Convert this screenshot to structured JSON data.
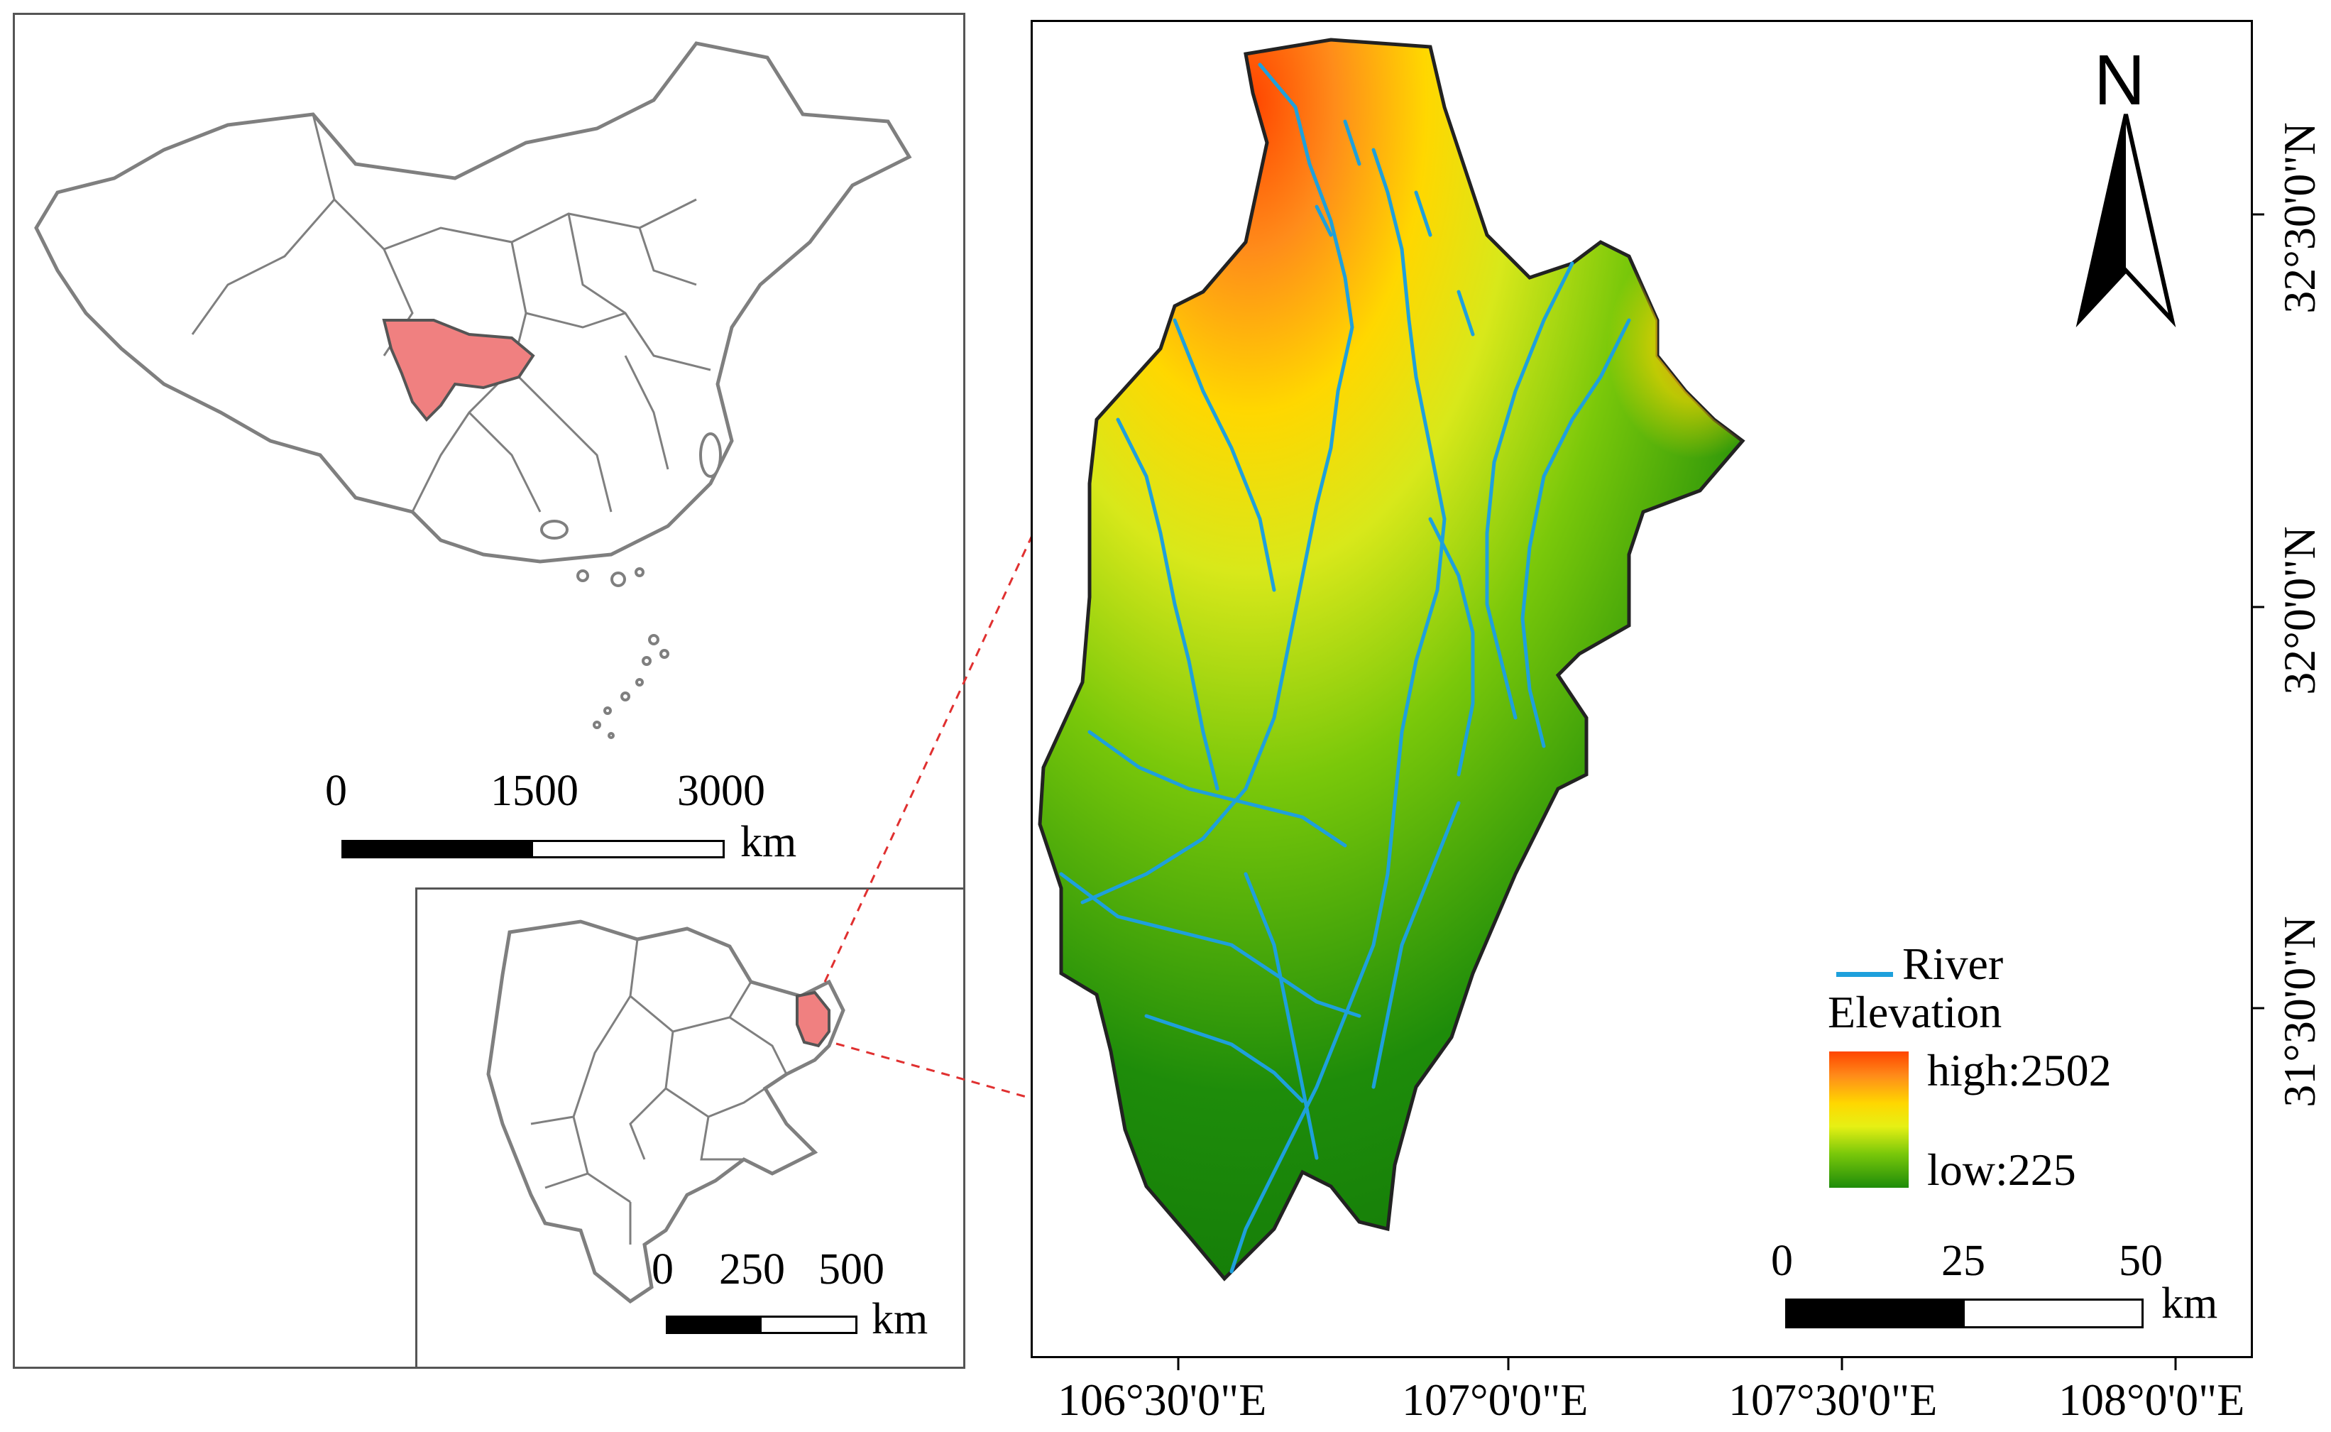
{
  "china_map": {
    "highlight_color": "#f08080",
    "outline_color": "#7f7f7f",
    "scalebar": {
      "ticks": [
        "0",
        "1500",
        "3000"
      ],
      "unit": "km"
    }
  },
  "sichuan_map": {
    "highlight_color": "#f08080",
    "outline_color": "#7f7f7f",
    "scalebar": {
      "ticks": [
        "0",
        "250",
        "500"
      ],
      "unit": "km"
    }
  },
  "study_area_map": {
    "north_arrow": "N",
    "longitude_ticks": [
      "106°30'0\"E",
      "107°0'0\"E",
      "107°30'0\"E",
      "108°0'0\"E"
    ],
    "latitude_ticks": [
      "32°30'0\"N",
      "32°0'0\"N",
      "31°30'0\"N"
    ],
    "legend": {
      "river_label": "River",
      "river_color": "#1ea0dc",
      "elevation_title": "Elevation",
      "high_label": "high:2502",
      "low_label": "low:225",
      "ramp_colors": [
        "#ff4500",
        "#ffd700",
        "#e6f014",
        "#7ac80a",
        "#1e8c0a"
      ]
    },
    "scalebar": {
      "ticks": [
        "0",
        "25",
        "50"
      ],
      "unit": "km"
    }
  },
  "leader_line_color": "#e03030"
}
